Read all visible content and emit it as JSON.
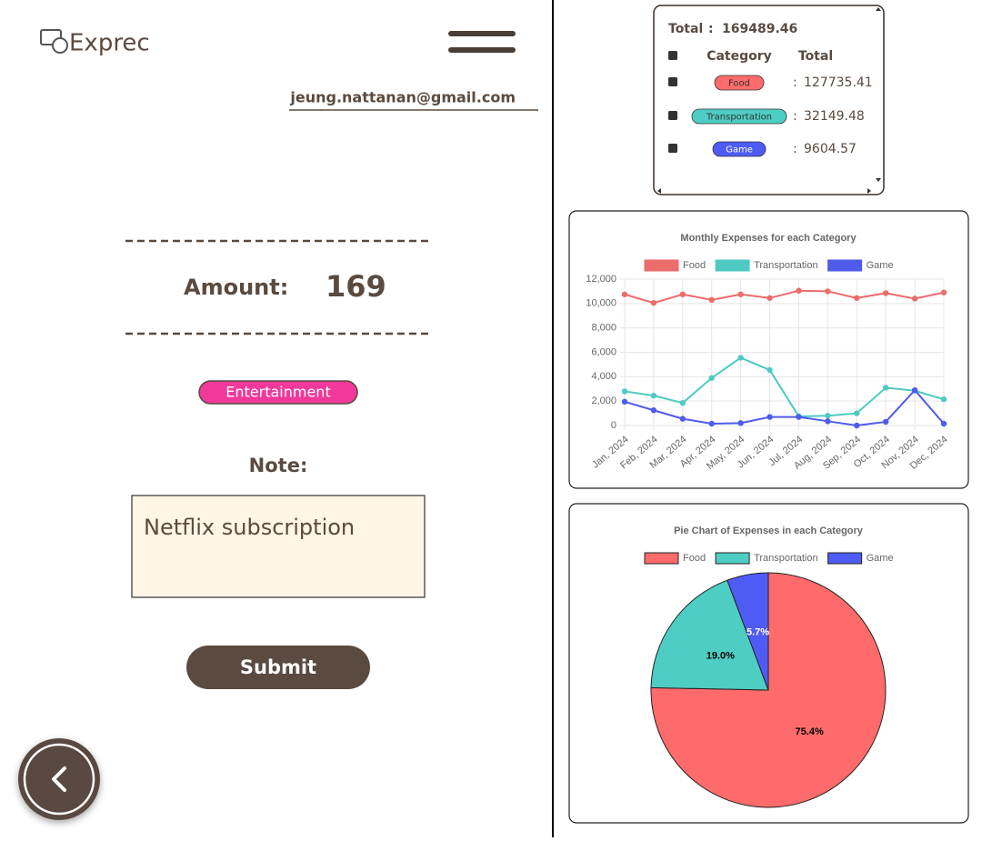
{
  "header": {
    "logo": "Exprec",
    "email": "jeung.nattanan@gmail.com"
  },
  "form": {
    "amount_label": "Amount:",
    "amount": 169,
    "category": "Entertainment",
    "note_label": "Note:",
    "note": "Netflix subscription",
    "submit": "Submit"
  },
  "summary": {
    "total_label": "Total",
    "separator": ":",
    "total": 169489.46,
    "headers": [
      "Category",
      "Total"
    ],
    "rows": [
      {
        "category": "Food",
        "total": 127735.41
      },
      {
        "category": "Transportation",
        "total": 32149.48
      },
      {
        "category": "Game",
        "total": 9604.57
      }
    ]
  },
  "chart_data": [
    {
      "type": "line",
      "title": "Monthly Expenses for each Category",
      "categories": [
        "Jan, 2024",
        "Feb, 2024",
        "Mar, 2024",
        "Apr, 2024",
        "May, 2024",
        "Jun, 2024",
        "Jul, 2024",
        "Aug, 2024",
        "Sep, 2024",
        "Oct, 2024",
        "Nov, 2024",
        "Dec, 2024"
      ],
      "series": [
        {
          "name": "Food",
          "color": "#ec6b6b",
          "values": [
            10750,
            10050,
            10750,
            10300,
            10750,
            10450,
            11050,
            11000,
            10450,
            10850,
            10400,
            10900
          ]
        },
        {
          "name": "Transportation",
          "color": "#4ecac2",
          "values": [
            2800,
            2450,
            1850,
            3900,
            5550,
            4550,
            750,
            800,
            1000,
            3100,
            2850,
            2150
          ]
        },
        {
          "name": "Game",
          "color": "#4f5bea",
          "values": [
            1950,
            1250,
            550,
            150,
            200,
            700,
            700,
            350,
            0,
            300,
            2900,
            150
          ]
        }
      ],
      "ylim": [
        0,
        12000
      ],
      "yticks": [
        0,
        {
          "value": 2000,
          "label": "2,000"
        },
        {
          "value": 4000,
          "label": "4,000"
        },
        {
          "value": 6000,
          "label": "6,000"
        },
        {
          "value": 8000,
          "label": "8,000"
        },
        {
          "value": 10000,
          "label": "10,000"
        },
        {
          "value": 12000,
          "label": "12,000"
        }
      ],
      "grid": true
    },
    {
      "type": "pie",
      "title": "Pie Chart of Expenses in each Category",
      "categories": [
        "Food",
        "Transportation",
        "Game"
      ],
      "values": [
        75.4,
        19.0,
        5.7
      ],
      "value_labels": [
        "75.4%",
        "19.0%",
        "5.7%"
      ],
      "colors": [
        "#ff6b6b",
        "#4ecdc4",
        "#4f5bf5"
      ]
    }
  ]
}
